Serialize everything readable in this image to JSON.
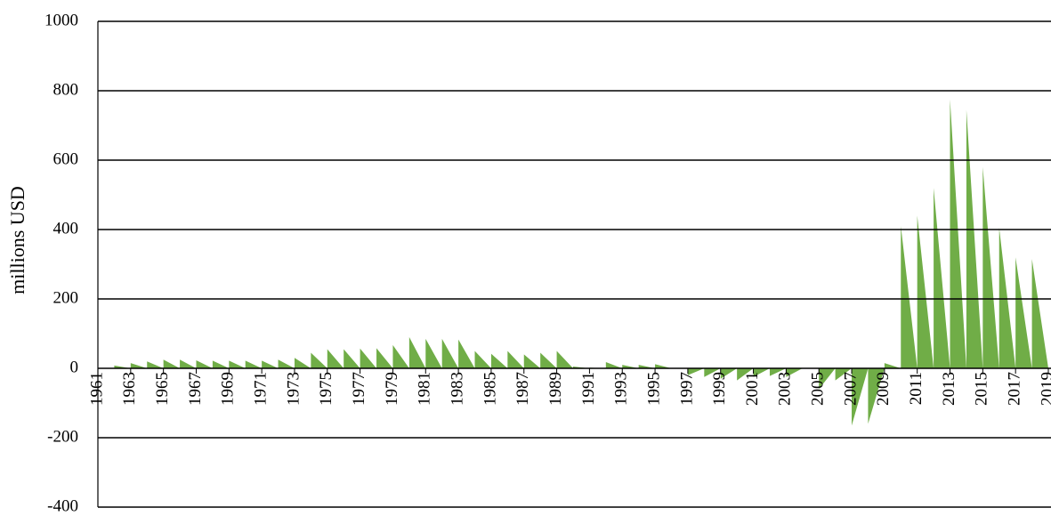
{
  "chart_data": {
    "type": "area",
    "y_label": "millions USD",
    "x": [
      1961,
      1962,
      1963,
      1964,
      1965,
      1966,
      1967,
      1968,
      1969,
      1970,
      1971,
      1972,
      1973,
      1974,
      1975,
      1976,
      1977,
      1978,
      1979,
      1980,
      1981,
      1982,
      1983,
      1984,
      1985,
      1986,
      1987,
      1988,
      1989,
      1990,
      1991,
      1992,
      1993,
      1994,
      1995,
      1996,
      1997,
      1998,
      1999,
      2000,
      2001,
      2002,
      2003,
      2004,
      2005,
      2006,
      2007,
      2008,
      2009,
      2010,
      2011,
      2012,
      2013,
      2014,
      2015,
      2016,
      2017,
      2018,
      2019
    ],
    "values": [
      0,
      8,
      15,
      20,
      25,
      25,
      23,
      22,
      22,
      22,
      22,
      25,
      30,
      45,
      55,
      55,
      57,
      58,
      67,
      90,
      85,
      85,
      83,
      50,
      42,
      50,
      40,
      45,
      50,
      5,
      2,
      18,
      10,
      10,
      12,
      0,
      -20,
      -25,
      -30,
      -35,
      -25,
      -22,
      -25,
      0,
      -60,
      -35,
      -165,
      -160,
      15,
      410,
      440,
      520,
      775,
      745,
      580,
      405,
      320,
      315,
      312
    ],
    "color": "#70ad47",
    "xlim": [
      1961,
      2019
    ],
    "xticks": [
      1961,
      1963,
      1965,
      1967,
      1969,
      1971,
      1973,
      1975,
      1977,
      1979,
      1981,
      1983,
      1985,
      1987,
      1989,
      1991,
      1993,
      1995,
      1997,
      1999,
      2001,
      2003,
      2005,
      2007,
      2009,
      2011,
      2013,
      2015,
      2017,
      2019
    ],
    "ylim": [
      -400,
      1000
    ],
    "yticks": [
      -400,
      -200,
      0,
      200,
      400,
      600,
      800,
      1000
    ],
    "grid": true
  }
}
